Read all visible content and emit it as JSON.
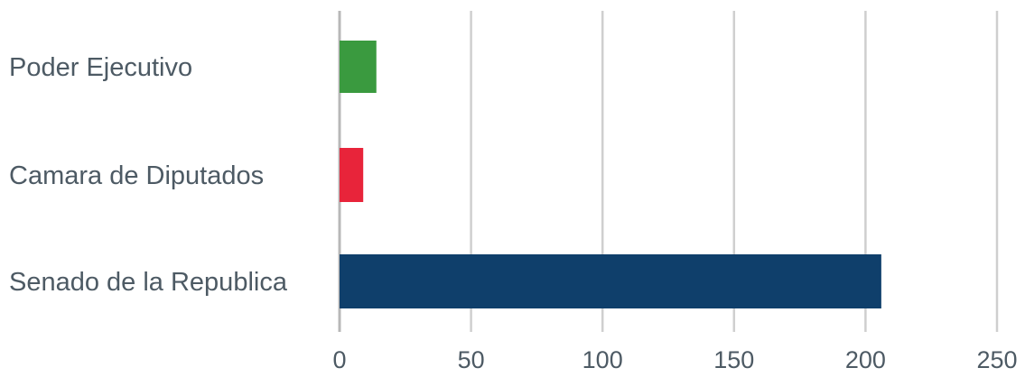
{
  "chart_data": {
    "type": "bar",
    "orientation": "horizontal",
    "title": "",
    "xlabel": "",
    "ylabel": "",
    "categories": [
      "Poder Ejecutivo",
      "Camara de Diputados",
      "Senado de la Republica"
    ],
    "values": [
      14,
      9,
      206
    ],
    "colors": [
      "#3a9a3f",
      "#e8243a",
      "#0f3f6b"
    ],
    "xlim": [
      0,
      250
    ],
    "xticks": [
      "0",
      "50",
      "100",
      "150",
      "200",
      "250"
    ],
    "grid": true,
    "legend": "none"
  }
}
